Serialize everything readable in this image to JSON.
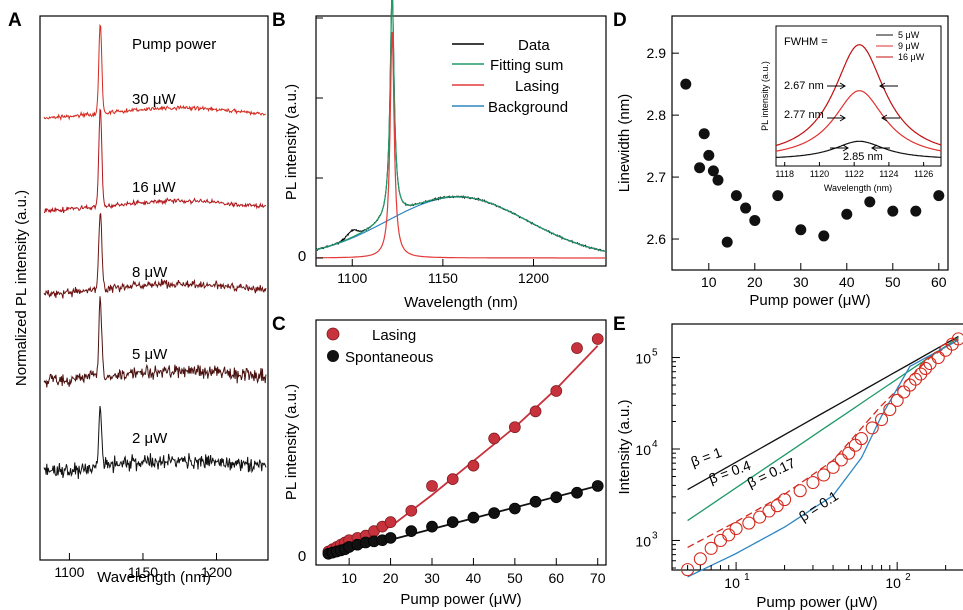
{
  "chart_data": [
    {
      "panel": "A",
      "type": "line",
      "xlabel": "Wavelength (nm)",
      "ylabel": "Normalized PL intensity (a.u.)",
      "xlim": [
        1080,
        1235
      ],
      "xticks": [
        1100,
        1150,
        1200
      ],
      "header": "Pump power",
      "series": [
        {
          "name": "30 μW",
          "color": "#d42a1e",
          "peak_x": 1121,
          "peak_rel": 1.0,
          "noise": 0.15
        },
        {
          "name": "16 μW",
          "color": "#b3161b",
          "peak_x": 1121,
          "peak_rel": 0.55,
          "noise": 0.18
        },
        {
          "name": "8 μW",
          "color": "#6e1413",
          "peak_x": 1121,
          "peak_rel": 0.38,
          "noise": 0.3
        },
        {
          "name": "5 μW",
          "color": "#4a1210",
          "peak_x": 1121,
          "peak_rel": 0.28,
          "noise": 0.5
        },
        {
          "name": "2 μW",
          "color": "#111111",
          "peak_x": 1121,
          "peak_rel": 0.12,
          "noise": 0.75
        }
      ]
    },
    {
      "panel": "B",
      "type": "line",
      "xlabel": "Wavelength (nm)",
      "ylabel": "PL intensity (a.u.)",
      "xlim": [
        1080,
        1240
      ],
      "ylim": [
        0,
        1
      ],
      "xticks": [
        1100,
        1150,
        1200
      ],
      "yticks": [
        "0"
      ],
      "legend": "top-right",
      "series": [
        {
          "name": "Data",
          "color": "#000000"
        },
        {
          "name": "Fitting sum",
          "color": "#1f9a68"
        },
        {
          "name": "Lasing",
          "color": "#e33a3a"
        },
        {
          "name": "Background",
          "color": "#2e86c1"
        }
      ],
      "lasing_peak": {
        "x": 1122,
        "fwhm": 2.7,
        "height": 1.0
      },
      "background_peak": {
        "x": 1158,
        "height": 0.27,
        "sigma": 55
      }
    },
    {
      "panel": "C",
      "type": "scatter",
      "xlabel": "Pump power (μW)",
      "ylabel": "PL intensity (a.u.)",
      "xlim": [
        2,
        72
      ],
      "ylim": [
        0,
        1
      ],
      "xticks": [
        10,
        20,
        30,
        40,
        50,
        60,
        70
      ],
      "yticks": [
        "0"
      ],
      "legend": "top-left",
      "series": [
        {
          "name": "Lasing",
          "color": "#c8323c",
          "x": [
            5,
            6,
            7,
            8,
            9,
            10,
            12,
            14,
            16,
            18,
            20,
            25,
            30,
            35,
            40,
            45,
            50,
            55,
            60,
            65,
            70
          ],
          "y": [
            0.02,
            0.03,
            0.04,
            0.05,
            0.06,
            0.07,
            0.08,
            0.09,
            0.11,
            0.13,
            0.15,
            0.2,
            0.31,
            0.34,
            0.4,
            0.52,
            0.57,
            0.64,
            0.73,
            0.92,
            0.96
          ]
        },
        {
          "name": "Spontaneous",
          "color": "#111111",
          "x": [
            5,
            6,
            7,
            8,
            9,
            10,
            12,
            14,
            16,
            18,
            20,
            25,
            30,
            35,
            40,
            45,
            50,
            55,
            60,
            65,
            70
          ],
          "y": [
            0.01,
            0.015,
            0.02,
            0.025,
            0.03,
            0.04,
            0.05,
            0.06,
            0.065,
            0.07,
            0.08,
            0.11,
            0.13,
            0.15,
            0.17,
            0.19,
            0.21,
            0.24,
            0.26,
            0.28,
            0.31
          ]
        }
      ],
      "fits": [
        {
          "color": "#c8323c",
          "x": [
            5,
            20,
            30,
            40,
            50,
            60,
            70
          ],
          "y": [
            0.02,
            0.13,
            0.27,
            0.42,
            0.57,
            0.74,
            0.93
          ]
        },
        {
          "color": "#111111",
          "x": [
            5,
            70
          ],
          "y": [
            0.0,
            0.31
          ]
        }
      ]
    },
    {
      "panel": "D",
      "type": "scatter",
      "xlabel": "Pump power (μW)",
      "ylabel": "Linewidth (nm)",
      "xlim": [
        2,
        62
      ],
      "ylim": [
        2.55,
        2.96
      ],
      "xticks": [
        10,
        20,
        30,
        40,
        50,
        60
      ],
      "yticks": [
        2.6,
        2.7,
        2.8,
        2.9
      ],
      "series": [
        {
          "color": "#111111",
          "x": [
            5,
            8,
            9,
            10,
            11,
            12,
            14,
            16,
            18,
            20,
            25,
            30,
            35,
            40,
            45,
            50,
            55,
            60
          ],
          "y": [
            2.85,
            2.715,
            2.77,
            2.735,
            2.71,
            2.695,
            2.595,
            2.67,
            2.65,
            2.63,
            2.67,
            2.615,
            2.605,
            2.64,
            2.66,
            2.645,
            2.645,
            2.67
          ]
        }
      ],
      "inset": {
        "xlabel": "Wavelength (nm)",
        "ylabel": "PL intensity (a.u.)",
        "xlim": [
          1117.5,
          1127
        ],
        "xticks": [
          1118,
          1120,
          1122,
          1124,
          1126
        ],
        "title": "FWHM =",
        "annotations": [
          "2.67 nm",
          "2.77 nm",
          "2.85 nm"
        ],
        "series": [
          {
            "name": "5 μW",
            "color": "#111111",
            "peak": 0.16
          },
          {
            "name": "9 μW",
            "color": "#e03030",
            "peak": 0.6
          },
          {
            "name": "16 μW",
            "color": "#c01010",
            "peak": 1.0
          }
        ]
      }
    },
    {
      "panel": "E",
      "type": "line",
      "xlabel": "Pump power (μW)",
      "ylabel": "Intensity (a.u.)",
      "xscale": "log",
      "yscale": "log",
      "xlim": [
        4,
        260
      ],
      "ylim": [
        500,
        200000
      ],
      "xtick_labels": [
        "10",
        "10",
        "10",
        "10",
        "10"
      ],
      "xtick_exps": [
        "1",
        "2"
      ],
      "ytick_exps": [
        "3",
        "4",
        "5"
      ],
      "series": [
        {
          "name": "β = 1",
          "color": "#111111",
          "x": [
            5,
            240
          ],
          "y": [
            3600,
            170000
          ]
        },
        {
          "name": "β = 0.4",
          "color": "#1f9a68",
          "x": [
            5,
            240
          ],
          "y": [
            1650,
            165000
          ]
        },
        {
          "name": "β = 0.17",
          "color": "#d42a1e",
          "x": [
            5,
            10,
            20,
            40,
            80,
            160,
            240
          ],
          "y": [
            840,
            1600,
            3200,
            7500,
            30000,
            100000,
            160000
          ]
        },
        {
          "name": "β = 0.1",
          "color": "#2e86c1",
          "x": [
            5,
            10,
            20,
            40,
            60,
            80,
            120,
            240
          ],
          "y": [
            400,
            720,
            1400,
            3100,
            8000,
            23000,
            80000,
            155000
          ]
        }
      ],
      "markers": {
        "color": "#d42a1e",
        "x": [
          5,
          6,
          7,
          8,
          9,
          10,
          12,
          14,
          16,
          18,
          20,
          25,
          30,
          35,
          40,
          45,
          50,
          55,
          60,
          70,
          80,
          90,
          100,
          110,
          120,
          130,
          140,
          150,
          160,
          180,
          200,
          220,
          240
        ],
        "y": [
          480,
          630,
          820,
          1000,
          1150,
          1350,
          1550,
          1800,
          2100,
          2400,
          2800,
          3500,
          4300,
          5200,
          6300,
          7600,
          9000,
          11000,
          13000,
          17000,
          21000,
          27000,
          34000,
          42000,
          50000,
          58000,
          66000,
          76000,
          86000,
          100000,
          120000,
          140000,
          160000
        ]
      },
      "labels": [
        "β = 1",
        "β = 0.4",
        "β = 0.17",
        "β = 0.1"
      ]
    }
  ],
  "panel_letters": [
    "A",
    "B",
    "C",
    "D",
    "E"
  ],
  "labels": {
    "a_header": "Pump power",
    "a_series": [
      "30 μW",
      "16 μW",
      "8 μW",
      "5 μW",
      "2 μW"
    ],
    "a_xlabel": "Wavelength (nm)",
    "a_ylabel": "Normalized PL intensity (a.u.)",
    "b_xlabel": "Wavelength (nm)",
    "b_ylabel": "PL intensity (a.u.)",
    "b_legend": [
      "Data",
      "Fitting sum",
      "Lasing",
      "Background"
    ],
    "c_xlabel": "Pump power (μW)",
    "c_ylabel": "PL intensity (a.u.)",
    "c_legend": [
      "Lasing",
      "Spontaneous"
    ],
    "d_xlabel": "Pump power (μW)",
    "d_ylabel": "Linewidth (nm)",
    "d_inset_title": "FWHM =",
    "d_inset_xlabel": "Wavelength (nm)",
    "d_inset_ylabel": "PL intensity (a.u.)",
    "d_inset_legend": [
      "5 μW",
      "9 μW",
      "16 μW"
    ],
    "d_inset_annot": [
      "2.67 nm",
      "2.77 nm",
      "2.85 nm"
    ],
    "e_xlabel": "Pump power (μW)",
    "e_ylabel": "Intensity (a.u.)",
    "e_betas": [
      "β = 1",
      "β = 0.4",
      "β = 0.17",
      "β = 0.1"
    ]
  }
}
